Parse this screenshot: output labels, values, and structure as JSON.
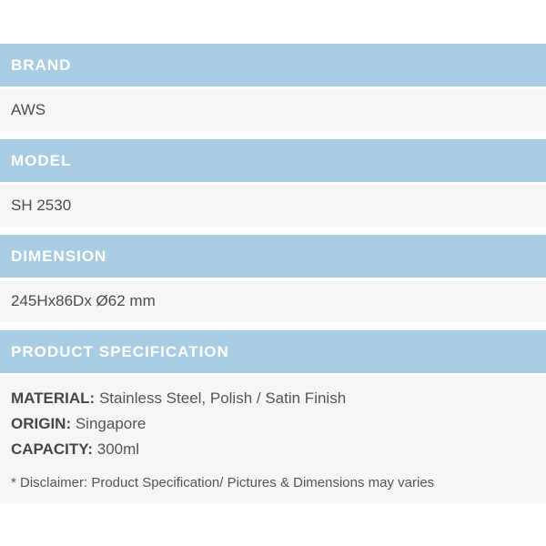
{
  "colors": {
    "header_bg": "#a9cde3",
    "header_text": "#ffffff",
    "row_bg": "#f6f6f6",
    "value_text": "#4d4d4d",
    "label_text": "#474747",
    "disclaimer_text": "#555555",
    "page_bg": "#ffffff"
  },
  "sections": [
    {
      "header": "BRAND",
      "value": "AWS"
    },
    {
      "header": "MODEL",
      "value": "SH 2530"
    },
    {
      "header": "DIMENSION",
      "value": "245Hx86Dx Ø62 mm"
    }
  ],
  "product_specification": {
    "header": "PRODUCT SPECIFICATION",
    "rows": [
      {
        "label": "MATERIAL:",
        "value": "Stainless Steel, Polish / Satin Finish"
      },
      {
        "label": "ORIGIN:",
        "value": "Singapore"
      },
      {
        "label": "CAPACITY:",
        "value": "300ml"
      }
    ],
    "disclaimer": "* Disclaimer: Product Specification/ Pictures & Dimensions may varies"
  }
}
